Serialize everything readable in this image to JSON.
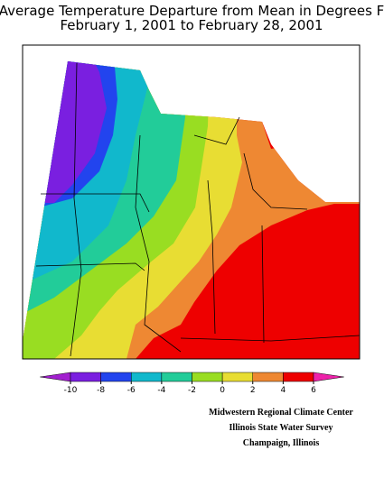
{
  "title": [
    "Average Temperature Departure from Mean in Degrees F",
    "February 1, 2001 to February 28, 2001"
  ],
  "colorbar": {
    "ticks": [
      -10,
      -8,
      -6,
      -4,
      -2,
      0,
      2,
      4,
      6
    ],
    "colors": [
      "#a21fcf",
      "#7a1fe0",
      "#2244ee",
      "#11b8cc",
      "#22cc99",
      "#99dd22",
      "#e8dd33",
      "#ee8833",
      "#ee0000",
      "#ee22aa"
    ]
  },
  "credits": [
    "Midwestern Regional Climate Center",
    "Illinois State Water Survey",
    "Champaign, Illinois"
  ]
}
